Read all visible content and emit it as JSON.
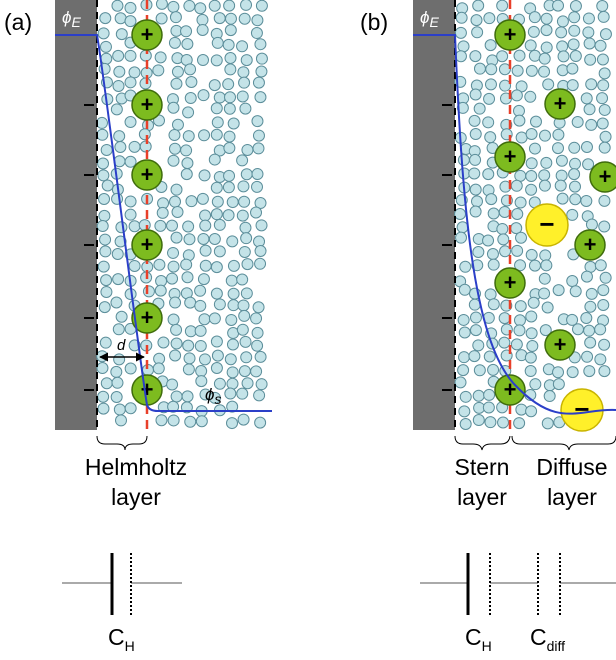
{
  "panels": [
    {
      "label": "(a)",
      "electrode_potential": {
        "symbol": "ϕ",
        "subscript": "E"
      },
      "distance_label": "d",
      "solution_potential": {
        "symbol": "ϕ",
        "subscript": "s"
      },
      "layers": [
        {
          "line1": "Helmholtz",
          "line2": "layer"
        }
      ],
      "capacitors": [
        {
          "symbol": "C",
          "subscript": "H"
        }
      ]
    },
    {
      "label": "(b)",
      "electrode_potential": {
        "symbol": "ϕ",
        "subscript": "E"
      },
      "layers": [
        {
          "line1": "Stern",
          "line2": "layer"
        },
        {
          "line1": "Diffuse",
          "line2": "layer"
        }
      ],
      "capacitors": [
        {
          "symbol": "C",
          "subscript": "H"
        },
        {
          "symbol": "C",
          "subscript": "diff"
        }
      ]
    }
  ],
  "ion_signs": {
    "cation": "+",
    "anion": "−"
  }
}
